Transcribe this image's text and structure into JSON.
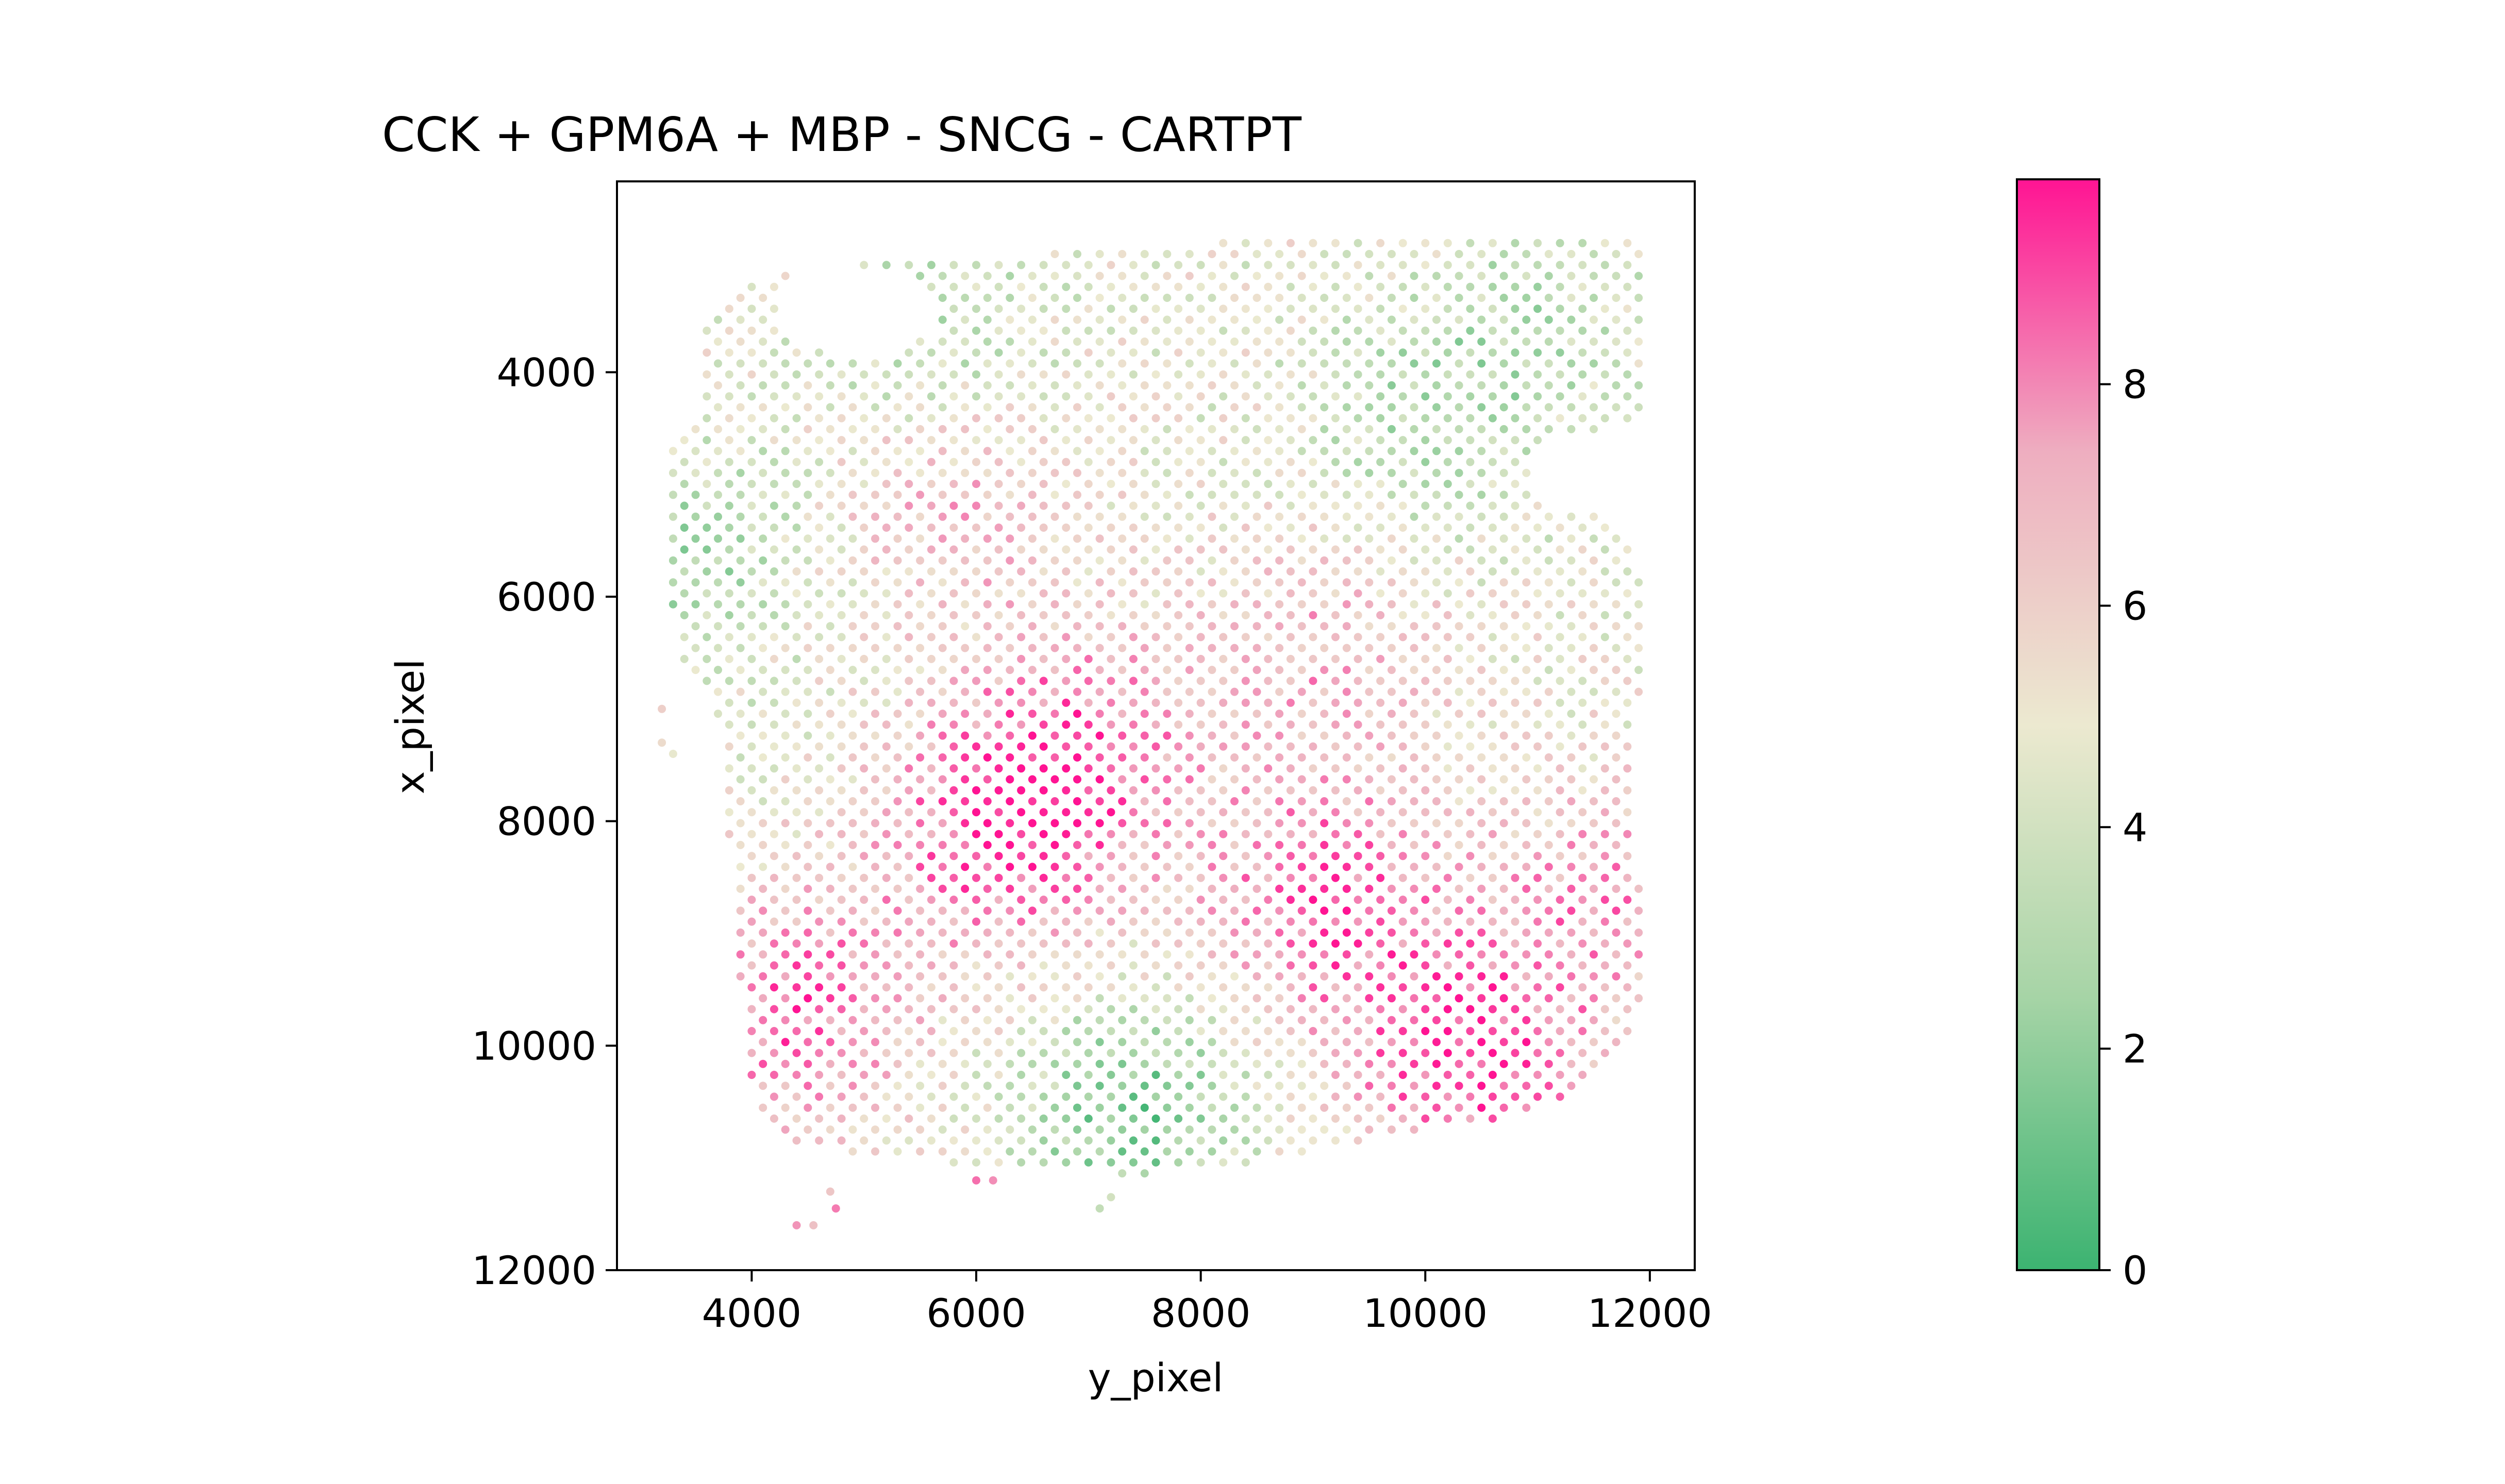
{
  "chart_data": {
    "type": "scatter",
    "title": "CCK + GPM6A + MBP - SNCG - CARTPT",
    "xlabel": "y_pixel",
    "ylabel": "x_pixel",
    "xlim": [
      2800,
      12400
    ],
    "ylim": [
      12000,
      2300
    ],
    "y_inverted": true,
    "xticks": [
      4000,
      6000,
      8000,
      10000,
      12000
    ],
    "yticks": [
      4000,
      6000,
      8000,
      10000,
      12000
    ],
    "grid": false,
    "legend": "none",
    "colorbar": {
      "range": [
        0,
        9.85
      ],
      "ticks": [
        0,
        2,
        4,
        6,
        8
      ],
      "colors": [
        "#3cb371",
        "#a6d4a6",
        "#ece9d0",
        "#eeaec0",
        "#ff1493"
      ]
    },
    "value_field": {
      "grid_spacing_x": 100,
      "grid_spacing_y": 195,
      "background_value": 4.8,
      "hotspots": [
        {
          "x": 6200,
          "y": 8100,
          "value": 8.9
        },
        {
          "x": 4400,
          "y": 9700,
          "value": 8.6
        },
        {
          "x": 10400,
          "y": 10200,
          "value": 9.2
        },
        {
          "x": 9100,
          "y": 8700,
          "value": 8.7
        },
        {
          "x": 7000,
          "y": 7300,
          "value": 7.8
        },
        {
          "x": 5800,
          "y": 5200,
          "value": 7.0
        },
        {
          "x": 9100,
          "y": 6500,
          "value": 7.1
        },
        {
          "x": 11600,
          "y": 8700,
          "value": 7.6
        }
      ],
      "coldspots": [
        {
          "x": 7400,
          "y": 10600,
          "value": 1.3
        },
        {
          "x": 3500,
          "y": 5600,
          "value": 2.6
        },
        {
          "x": 10000,
          "y": 4500,
          "value": 2.8
        },
        {
          "x": 5600,
          "y": 3600,
          "value": 2.9
        },
        {
          "x": 11000,
          "y": 3500,
          "value": 3.2
        }
      ]
    },
    "isolated_points": [
      {
        "x": 4400,
        "y": 11600,
        "value": 7.8
      },
      {
        "x": 4550,
        "y": 11600,
        "value": 6.6
      },
      {
        "x": 4750,
        "y": 11450,
        "value": 8.2
      },
      {
        "x": 4700,
        "y": 11300,
        "value": 6.4
      },
      {
        "x": 7200,
        "y": 11350,
        "value": 4.0
      },
      {
        "x": 7100,
        "y": 11450,
        "value": 3.5
      },
      {
        "x": 3200,
        "y": 7300,
        "value": 5.5
      },
      {
        "x": 3300,
        "y": 7400,
        "value": 4.8
      },
      {
        "x": 3200,
        "y": 7000,
        "value": 6.0
      },
      {
        "x": 6000,
        "y": 11200,
        "value": 8.4
      },
      {
        "x": 6150,
        "y": 11200,
        "value": 7.9
      }
    ]
  }
}
